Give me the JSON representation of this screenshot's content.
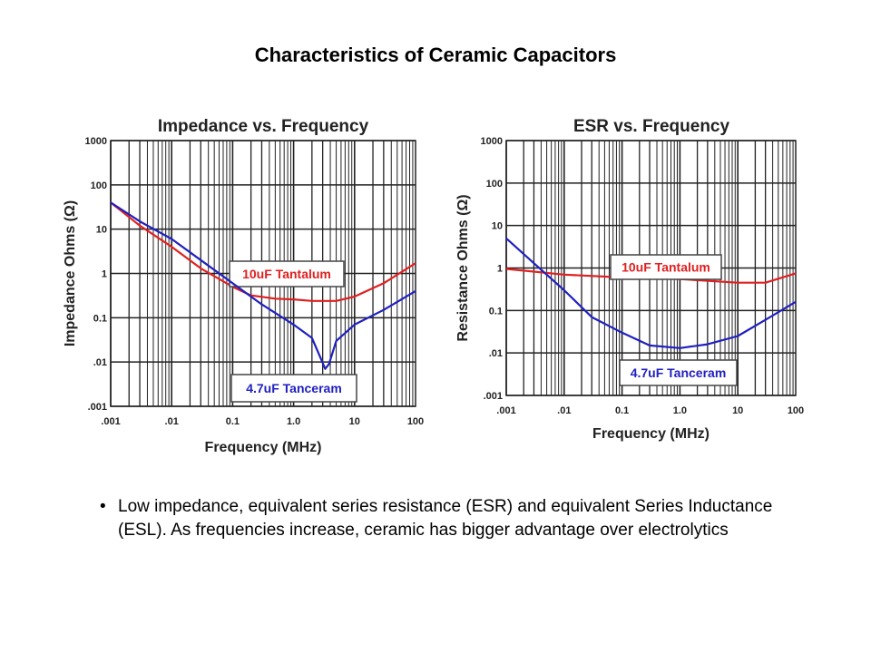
{
  "slide": {
    "title": "Characteristics of Ceramic Capacitors",
    "bullet": "Low impedance, equivalent series resistance (ESR) and equivalent Series Inductance (ESL). As frequencies increase, ceramic has bigger advantage over electrolytics"
  },
  "chart_data": [
    {
      "type": "line",
      "title": "Impedance vs. Frequency",
      "xlabel": "Frequency  (MHz)",
      "ylabel": "Impedance Ohms  (Ω)",
      "xscale": "log",
      "yscale": "log",
      "xlim": [
        0.001,
        100
      ],
      "ylim": [
        0.001,
        1000
      ],
      "xticks": [
        ".001",
        ".01",
        "0.1",
        "1.0",
        "10",
        "100"
      ],
      "yticks": [
        ".001",
        ".01",
        "0.1",
        "1",
        "10",
        "100",
        "1000"
      ],
      "grid": true,
      "series": [
        {
          "name": "10uF Tantalum",
          "color": "#e02020",
          "x": [
            0.001,
            0.003,
            0.01,
            0.03,
            0.1,
            0.2,
            0.5,
            1,
            2,
            5,
            10,
            30,
            100
          ],
          "y": [
            40,
            12,
            4,
            1.3,
            0.5,
            0.32,
            0.27,
            0.26,
            0.24,
            0.24,
            0.3,
            0.6,
            1.7
          ]
        },
        {
          "name": "4.7uF Tanceram",
          "color": "#2020c0",
          "x": [
            0.001,
            0.003,
            0.01,
            0.03,
            0.1,
            0.3,
            1,
            2,
            2.8,
            3.3,
            3.8,
            5,
            10,
            30,
            100
          ],
          "y": [
            40,
            15,
            6,
            2,
            0.6,
            0.2,
            0.07,
            0.035,
            0.012,
            0.007,
            0.009,
            0.03,
            0.07,
            0.15,
            0.4
          ]
        }
      ]
    },
    {
      "type": "line",
      "title": "ESR vs. Frequency",
      "xlabel": "Frequency (MHz)",
      "ylabel": "Resistance Ohms (Ω)",
      "xscale": "log",
      "yscale": "log",
      "xlim": [
        0.001,
        100
      ],
      "ylim": [
        0.001,
        1000
      ],
      "xticks": [
        ".001",
        ".01",
        "0.1",
        "1.0",
        "10",
        "100"
      ],
      "yticks": [
        ".001",
        ".01",
        "0.1",
        "1",
        "10",
        "100",
        "1000"
      ],
      "grid": true,
      "series": [
        {
          "name": "10uF Tantalum",
          "color": "#e02020",
          "x": [
            0.001,
            0.01,
            0.1,
            1,
            10,
            30,
            100
          ],
          "y": [
            0.95,
            0.7,
            0.6,
            0.55,
            0.45,
            0.45,
            0.75
          ]
        },
        {
          "name": "4.7uF Tanceram",
          "color": "#2020c0",
          "x": [
            0.001,
            0.003,
            0.01,
            0.03,
            0.1,
            0.3,
            1,
            3,
            10,
            30,
            100
          ],
          "y": [
            5,
            1.3,
            0.3,
            0.07,
            0.03,
            0.015,
            0.013,
            0.016,
            0.025,
            0.06,
            0.16
          ]
        }
      ]
    }
  ]
}
